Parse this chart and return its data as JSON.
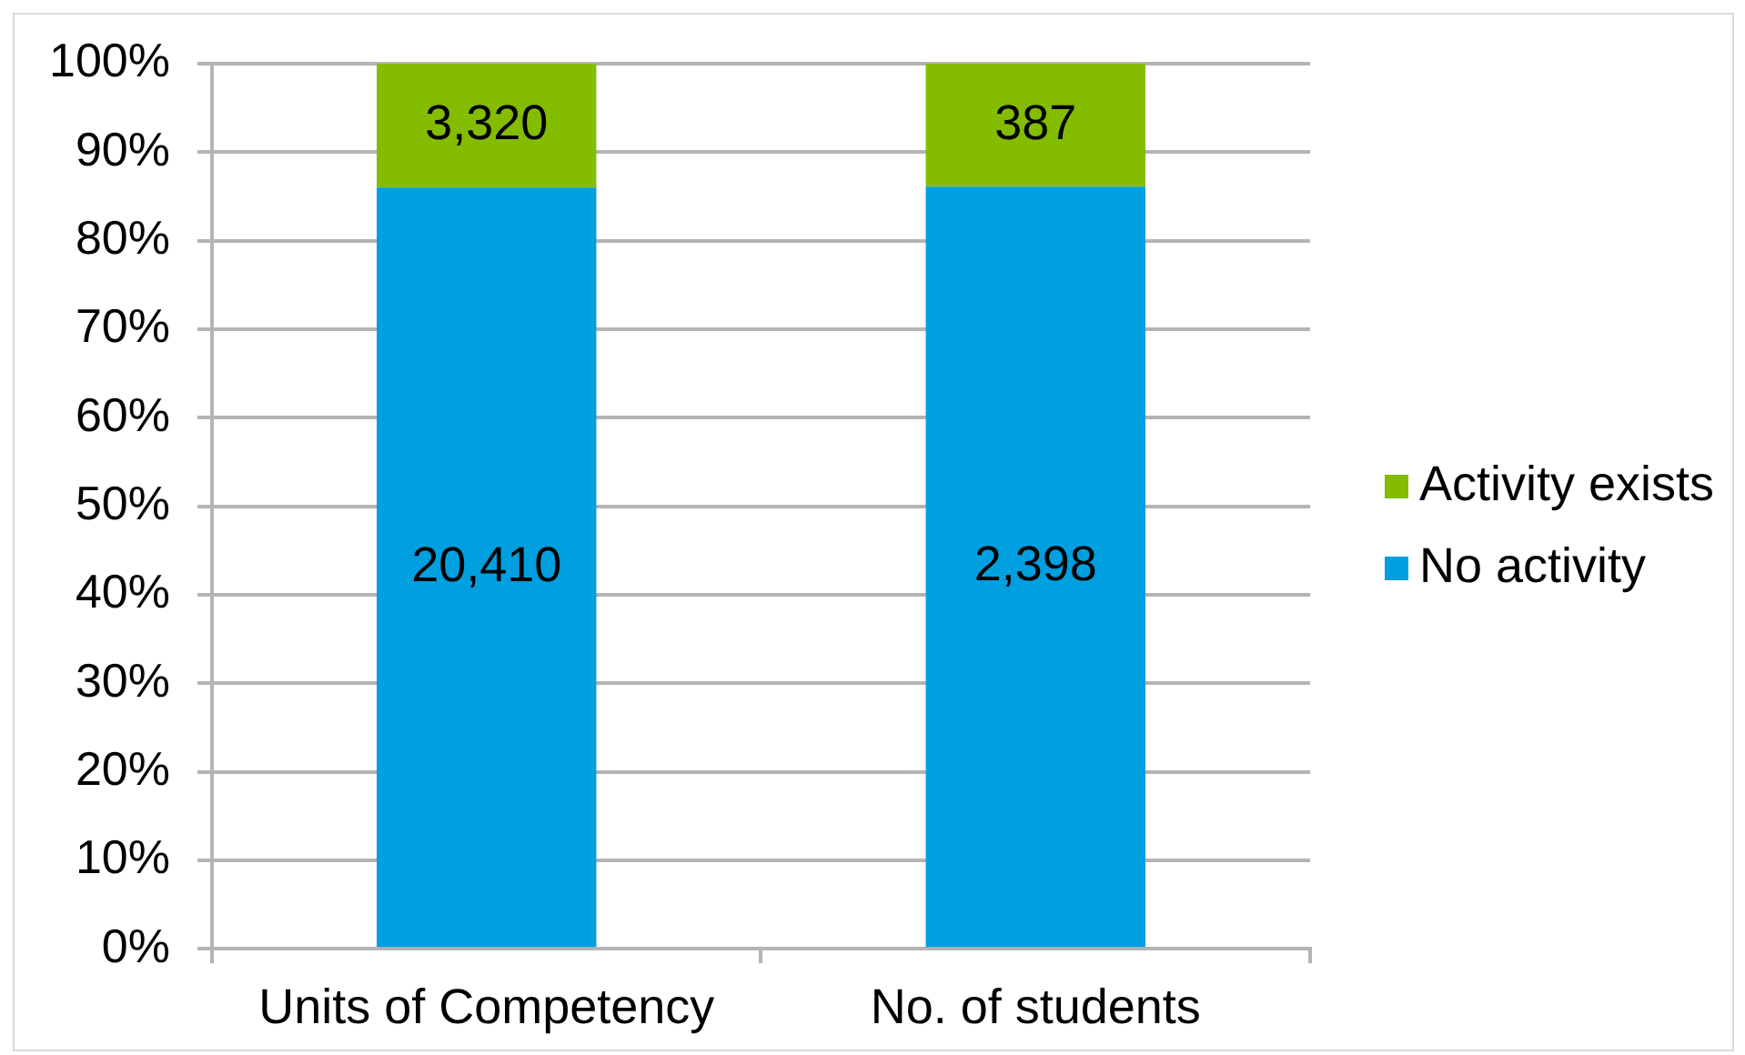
{
  "chart_data": {
    "type": "bar",
    "stacked": true,
    "categories": [
      "Units of Competency",
      "No. of students"
    ],
    "series": [
      {
        "name": "No activity",
        "color": "#009fdf",
        "values": [
          86.0,
          86.1
        ]
      },
      {
        "name": "Activity exists",
        "color": "#84bc00",
        "values": [
          14.0,
          13.9
        ]
      }
    ],
    "annotations": [
      "20,410",
      "2,398",
      "3,320",
      "387"
    ],
    "ylim": [
      0,
      100
    ],
    "yticks": [
      {
        "value": 0,
        "label": "0%"
      },
      {
        "value": 10,
        "label": "10%"
      },
      {
        "value": 20,
        "label": "20%"
      },
      {
        "value": 30,
        "label": "30%"
      },
      {
        "value": 40,
        "label": "40%"
      },
      {
        "value": 50,
        "label": "50%"
      },
      {
        "value": 60,
        "label": "60%"
      },
      {
        "value": 70,
        "label": "70%"
      },
      {
        "value": 80,
        "label": "80%"
      },
      {
        "value": 90,
        "label": "90%"
      },
      {
        "value": 100,
        "label": "100%"
      }
    ],
    "grid": "y",
    "legend": "right"
  }
}
